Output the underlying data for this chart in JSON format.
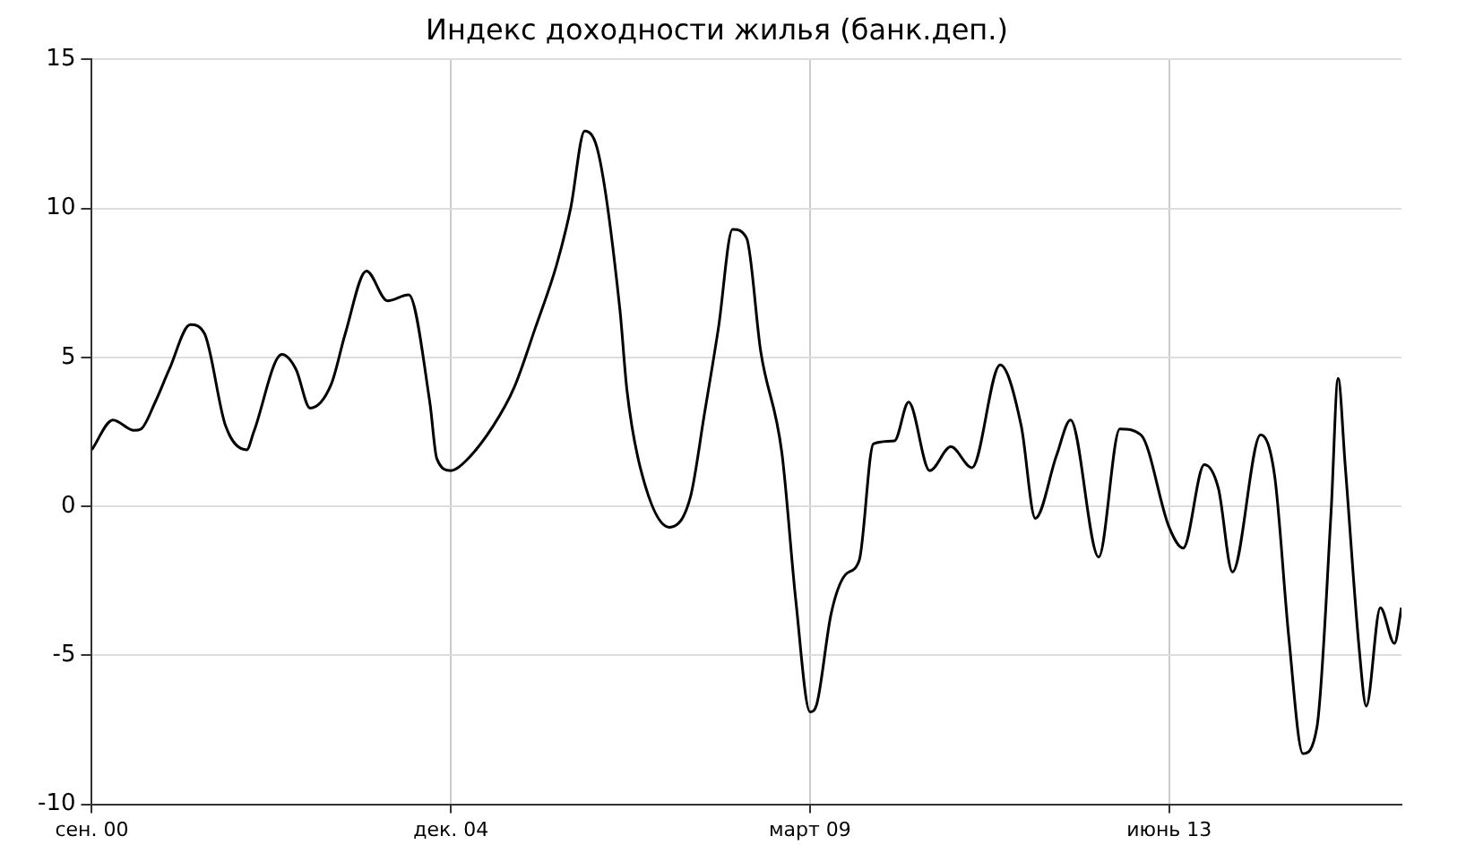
{
  "chart_data": {
    "type": "line",
    "title": "Индекс доходности жилья (банк.деп.)",
    "x": [
      "2000-09",
      "2000-12",
      "2001-03",
      "2001-04",
      "2001-06",
      "2001-08",
      "2001-11",
      "2002-01",
      "2002-04",
      "2002-07",
      "2002-08",
      "2002-12",
      "2003-02",
      "2003-04",
      "2003-07",
      "2003-09",
      "2003-12",
      "2004-03",
      "2004-06",
      "2004-09",
      "2004-10",
      "2004-12",
      "2005-02",
      "2005-06",
      "2005-09",
      "2005-12",
      "2006-03",
      "2006-05",
      "2006-07",
      "2006-09",
      "2006-12",
      "2007-01",
      "2007-03",
      "2007-07",
      "2007-10",
      "2007-12",
      "2008-02",
      "2008-04",
      "2008-06",
      "2008-08",
      "2008-11",
      "2009-01",
      "2009-03",
      "2009-04",
      "2009-06",
      "2009-08",
      "2009-10",
      "2009-12",
      "2010-03",
      "2010-05",
      "2010-08",
      "2010-11",
      "2011-02",
      "2011-06",
      "2011-09",
      "2011-11",
      "2012-02",
      "2012-04",
      "2012-08",
      "2012-11",
      "2013-02",
      "2013-06",
      "2013-08",
      "2013-11",
      "2014-01",
      "2014-03",
      "2014-07",
      "2014-09",
      "2014-11",
      "2015-01",
      "2015-03",
      "2015-05",
      "2015-06",
      "2015-07",
      "2015-09",
      "2015-10",
      "2015-12",
      "2016-02",
      "2016-03"
    ],
    "series": [
      {
        "color": "#000000",
        "values": [
          1.9,
          2.9,
          2.55,
          2.6,
          3.5,
          4.6,
          6.1,
          5.8,
          2.7,
          1.9,
          2.5,
          5.1,
          4.6,
          3.3,
          4.1,
          5.8,
          7.9,
          6.9,
          7.1,
          3.5,
          1.6,
          1.2,
          1.5,
          2.7,
          4.0,
          6.0,
          8.1,
          10.0,
          12.6,
          11.8,
          6.6,
          3.9,
          1.2,
          -0.7,
          0.3,
          3.1,
          6.0,
          9.3,
          9.0,
          5.2,
          1.8,
          -3.2,
          -6.9,
          -6.6,
          -3.6,
          -2.3,
          -1.8,
          2.1,
          2.2,
          3.5,
          1.2,
          2.0,
          1.3,
          4.75,
          2.7,
          -0.4,
          1.7,
          2.9,
          -1.7,
          2.6,
          2.4,
          -0.7,
          -1.4,
          1.4,
          0.6,
          -2.2,
          2.4,
          1.0,
          -4.4,
          -8.3,
          -7.4,
          -0.2,
          4.3,
          1.4,
          -4.8,
          -6.7,
          -3.4,
          -4.6,
          -3.4
        ]
      }
    ],
    "xlim": [
      "2000-09",
      "2016-03"
    ],
    "xticks": [
      {
        "value": "2000-09",
        "label": "сен. 00"
      },
      {
        "value": "2004-12",
        "label": "дек. 04"
      },
      {
        "value": "2009-03",
        "label": "март 09"
      },
      {
        "value": "2013-06",
        "label": "июнь 13"
      }
    ],
    "ylim": [
      -10,
      15
    ],
    "yticks": [
      -10,
      -5,
      0,
      5,
      10,
      15
    ],
    "grid": true,
    "legend": false,
    "marker": "none",
    "line_style": "solid"
  }
}
